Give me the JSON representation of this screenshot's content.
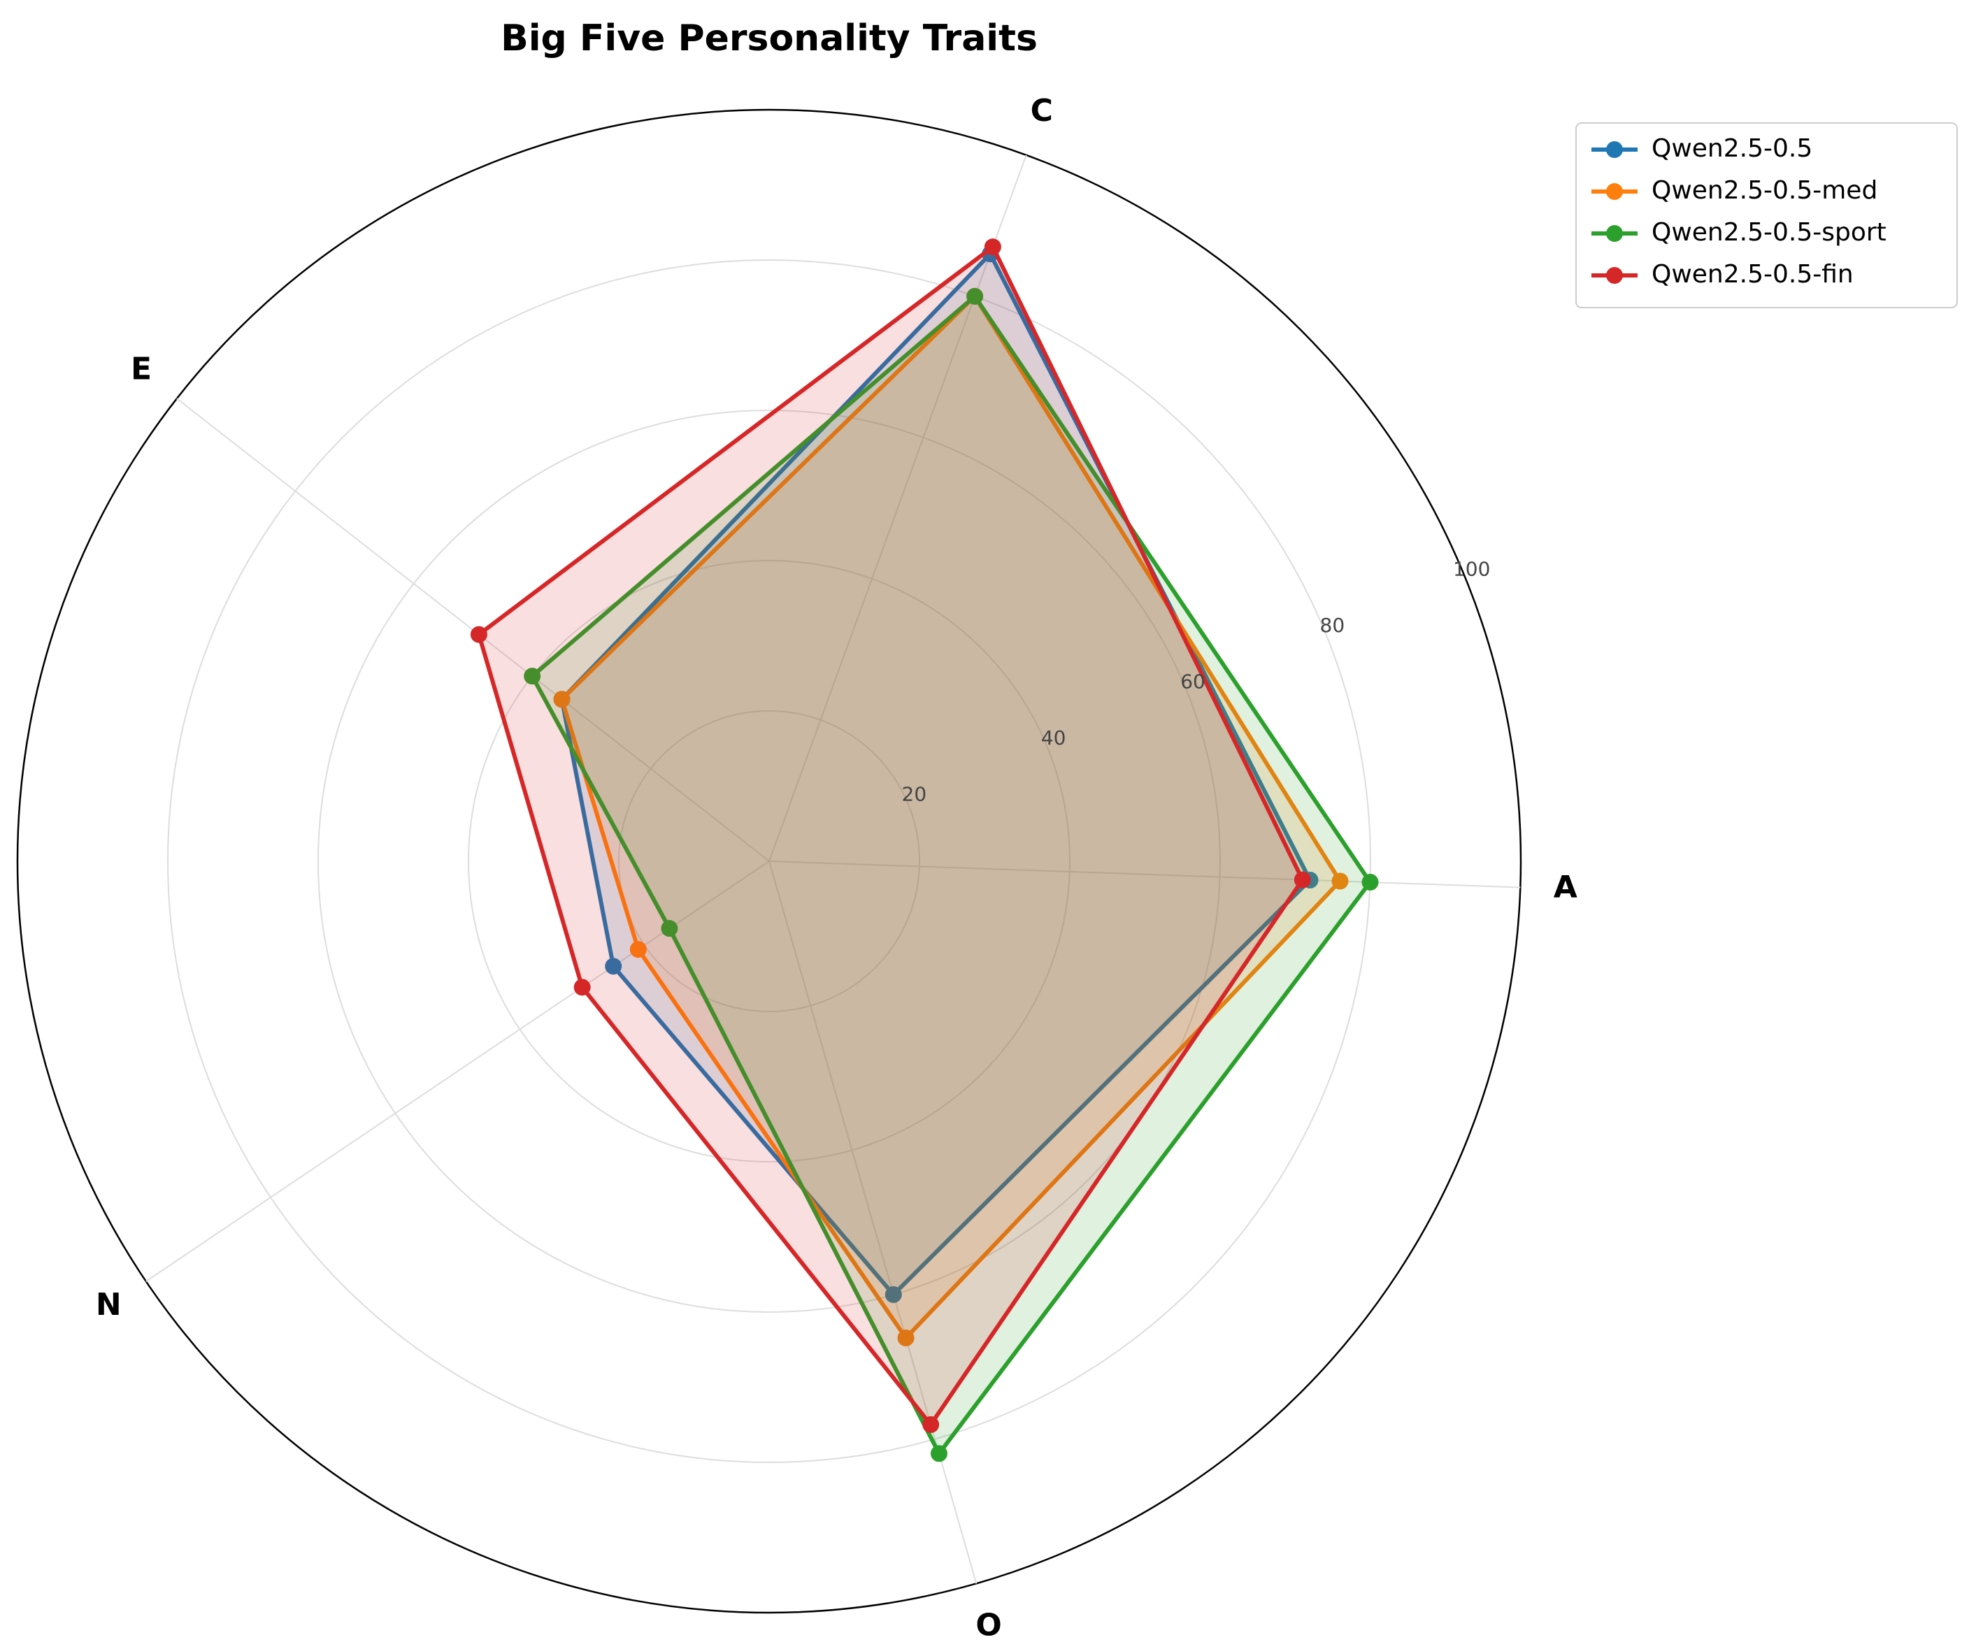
{
  "chart_data": {
    "type": "radar",
    "title": "Big Five Personality Traits",
    "categories": [
      "A",
      "C",
      "E",
      "N",
      "O"
    ],
    "rlim": [
      0,
      100
    ],
    "rticks": [
      20,
      40,
      60,
      80,
      100
    ],
    "grid": true,
    "legend_position": "outside top-right",
    "series": [
      {
        "name": "Qwen2.5-0.5",
        "color": "#1f77b4",
        "values": [
          72,
          86,
          35,
          25,
          60
        ]
      },
      {
        "name": "Qwen2.5-0.5-med",
        "color": "#ff7f0e",
        "values": [
          76,
          80,
          35,
          21,
          66
        ]
      },
      {
        "name": "Qwen2.5-0.5-sport",
        "color": "#2ca02c",
        "values": [
          80,
          80,
          40,
          16,
          82
        ]
      },
      {
        "name": "Qwen2.5-0.5-fin",
        "color": "#d62728",
        "values": [
          71,
          87,
          49,
          30,
          78
        ]
      }
    ]
  }
}
